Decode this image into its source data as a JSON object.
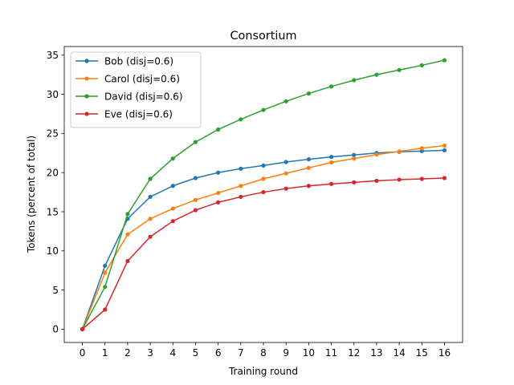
{
  "chart_data": {
    "type": "line",
    "title": "Consortium",
    "xlabel": "Training round",
    "ylabel": "Tokens (percent of total)",
    "x": [
      0,
      1,
      2,
      3,
      4,
      5,
      6,
      7,
      8,
      9,
      10,
      11,
      12,
      13,
      14,
      15,
      16
    ],
    "xlim": [
      -0.8,
      16.8
    ],
    "ylim": [
      -1.7,
      36.1
    ],
    "yticks": [
      0,
      5,
      10,
      15,
      20,
      25,
      30,
      35
    ],
    "xticks": [
      0,
      1,
      2,
      3,
      4,
      5,
      6,
      7,
      8,
      9,
      10,
      11,
      12,
      13,
      14,
      15,
      16
    ],
    "grid": false,
    "legend_position": "upper left",
    "series": [
      {
        "name": "Bob (disj=0.6)",
        "color": "#1f77b4",
        "values": [
          0,
          8.1,
          14.1,
          16.9,
          18.3,
          19.3,
          20.0,
          20.5,
          20.9,
          21.35,
          21.7,
          22.0,
          22.25,
          22.5,
          22.65,
          22.75,
          22.85
        ]
      },
      {
        "name": "Carol (disj=0.6)",
        "color": "#ff7f0e",
        "values": [
          0,
          7.2,
          12.1,
          14.1,
          15.4,
          16.5,
          17.4,
          18.3,
          19.2,
          19.9,
          20.6,
          21.3,
          21.8,
          22.3,
          22.7,
          23.1,
          23.45
        ]
      },
      {
        "name": "David (disj=0.6)",
        "color": "#2ca02c",
        "values": [
          0,
          5.4,
          14.7,
          19.2,
          21.8,
          23.9,
          25.5,
          26.8,
          28.0,
          29.1,
          30.1,
          31.0,
          31.8,
          32.5,
          33.1,
          33.7,
          34.35
        ]
      },
      {
        "name": "Eve (disj=0.6)",
        "color": "#d62728",
        "values": [
          0,
          2.5,
          8.7,
          11.8,
          13.8,
          15.2,
          16.2,
          16.9,
          17.5,
          17.95,
          18.3,
          18.55,
          18.75,
          18.95,
          19.1,
          19.2,
          19.3
        ]
      }
    ]
  }
}
